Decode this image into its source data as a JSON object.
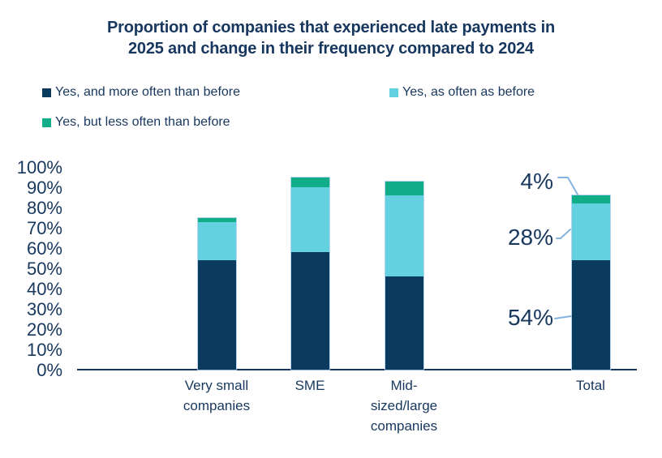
{
  "title": {
    "line1": "Proportion of companies that experienced late payments in",
    "line2": "2025 and change in their frequency compared to 2024"
  },
  "legend": [
    {
      "label": "Yes, and more often than before",
      "color": "#0a3a5e"
    },
    {
      "label": "Yes, as often as before",
      "color": "#63d1e0"
    },
    {
      "label": "Yes, but less often than before",
      "color": "#0fae88"
    }
  ],
  "colors": {
    "text_navy": "#17375e",
    "bar_dark_navy": "#0a3a5e",
    "bar_cyan": "#63d1e0",
    "bar_green": "#0fae88",
    "leader_line_blue": "#85b4e0"
  },
  "chart_data": {
    "type": "bar",
    "stacked": true,
    "title": "Proportion of companies that experienced late payments in 2025 and change in their frequency compared to 2024",
    "categories": [
      "Very small companies",
      "SME",
      "Mid-sized/large companies",
      "Total"
    ],
    "categories_display": [
      "Very small\ncompanies",
      "SME",
      "Mid-\nsized/large\ncompanies",
      "Total"
    ],
    "series": [
      {
        "name": "Yes, and more often than before",
        "color": "#0a3a5e",
        "values": [
          54,
          58,
          46,
          54
        ]
      },
      {
        "name": "Yes, as often as before",
        "color": "#63d1e0",
        "values": [
          19,
          32,
          40,
          28
        ]
      },
      {
        "name": "Yes, but less often than before",
        "color": "#0fae88",
        "values": [
          2,
          5,
          7,
          4
        ]
      }
    ],
    "ylim": [
      0,
      100
    ],
    "y_ticks": [
      "100%",
      "90%",
      "80%",
      "70%",
      "60%",
      "50%",
      "40%",
      "30%",
      "20%",
      "10%",
      "0%"
    ],
    "grid": false,
    "legend_position": "top-left",
    "annotations": [
      {
        "text": "4%",
        "target": "Total — Yes, but less often than before"
      },
      {
        "text": "28%",
        "target": "Total — Yes, as often as before"
      },
      {
        "text": "54%",
        "target": "Total — Yes, and more often than before"
      }
    ]
  }
}
